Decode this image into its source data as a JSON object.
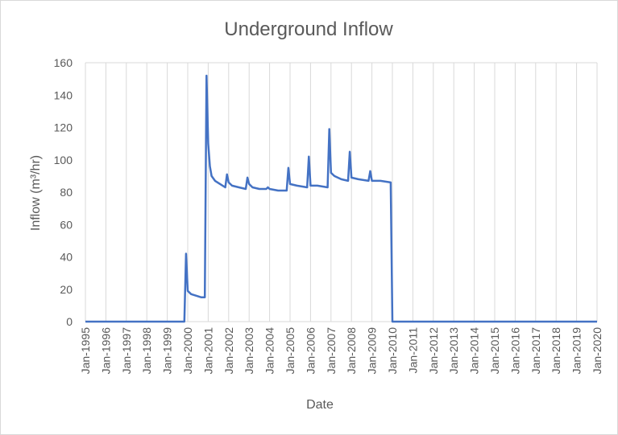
{
  "chart_data": {
    "type": "line",
    "title": "Underground Inflow",
    "xlabel": "Date",
    "ylabel": "Inflow (m³/hr)",
    "ylim": [
      0,
      160
    ],
    "yticks": [
      0,
      20,
      40,
      60,
      80,
      100,
      120,
      140,
      160
    ],
    "xlim": [
      "1995-01",
      "2020-01"
    ],
    "xticks": [
      "Jan-1995",
      "Jan-1996",
      "Jan-1997",
      "Jan-1998",
      "Jan-1999",
      "Jan-2000",
      "Jan-2001",
      "Jan-2002",
      "Jan-2003",
      "Jan-2004",
      "Jan-2005",
      "Jan-2006",
      "Jan-2007",
      "Jan-2008",
      "Jan-2009",
      "Jan-2010",
      "Jan-2011",
      "Jan-2012",
      "Jan-2013",
      "Jan-2014",
      "Jan-2015",
      "Jan-2016",
      "Jan-2017",
      "Jan-2018",
      "Jan-2019",
      "Jan-2020"
    ],
    "grid": "vertical",
    "line_color": "#4472c4",
    "series": [
      {
        "points": [
          [
            "1995-01",
            0
          ],
          [
            "1999-11",
            0
          ],
          [
            "1999-12",
            42
          ],
          [
            "2000-01",
            19
          ],
          [
            "2000-03",
            17
          ],
          [
            "2000-06",
            16
          ],
          [
            "2000-09",
            15
          ],
          [
            "2000-11",
            15
          ],
          [
            "2000-12",
            152
          ],
          [
            "2001-01",
            110
          ],
          [
            "2001-02",
            96
          ],
          [
            "2001-03",
            90
          ],
          [
            "2001-05",
            87
          ],
          [
            "2001-08",
            85
          ],
          [
            "2001-11",
            83
          ],
          [
            "2001-12",
            91
          ],
          [
            "2002-01",
            86
          ],
          [
            "2002-03",
            84
          ],
          [
            "2002-07",
            83
          ],
          [
            "2002-11",
            82
          ],
          [
            "2002-12",
            89
          ],
          [
            "2003-01",
            85
          ],
          [
            "2003-03",
            83
          ],
          [
            "2003-07",
            82
          ],
          [
            "2003-11",
            82
          ],
          [
            "2003-12",
            83
          ],
          [
            "2004-01",
            82
          ],
          [
            "2004-06",
            81
          ],
          [
            "2004-11",
            81
          ],
          [
            "2004-12",
            95
          ],
          [
            "2005-01",
            85
          ],
          [
            "2005-05",
            84
          ],
          [
            "2005-11",
            83
          ],
          [
            "2005-12",
            102
          ],
          [
            "2006-01",
            84
          ],
          [
            "2006-05",
            84
          ],
          [
            "2006-11",
            83
          ],
          [
            "2006-12",
            119
          ],
          [
            "2007-01",
            92
          ],
          [
            "2007-03",
            90
          ],
          [
            "2007-07",
            88
          ],
          [
            "2007-11",
            87
          ],
          [
            "2007-12",
            105
          ],
          [
            "2008-01",
            89
          ],
          [
            "2008-05",
            88
          ],
          [
            "2008-11",
            87
          ],
          [
            "2008-12",
            93
          ],
          [
            "2009-01",
            87
          ],
          [
            "2009-06",
            87
          ],
          [
            "2009-12",
            86
          ],
          [
            "2010-01",
            0
          ],
          [
            "2020-01",
            0
          ]
        ]
      }
    ]
  }
}
